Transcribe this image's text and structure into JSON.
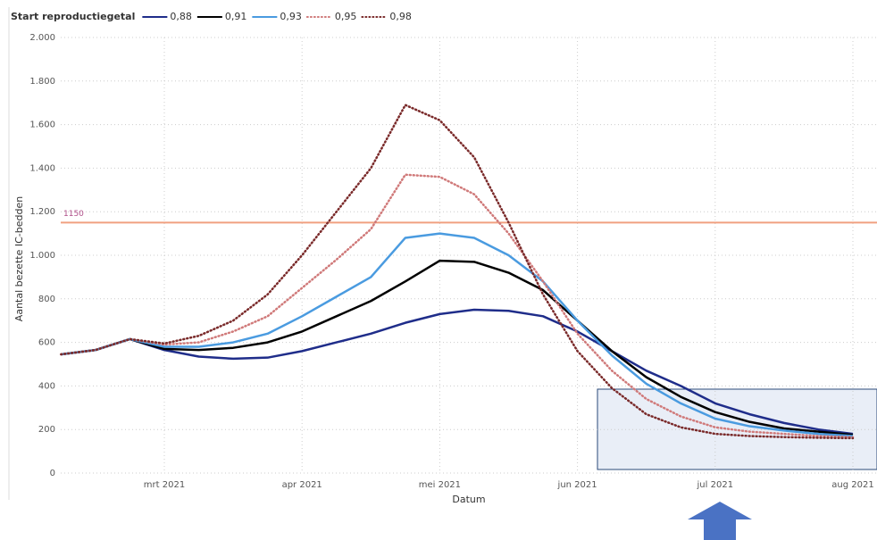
{
  "chart_data": {
    "type": "line",
    "legend_title": "Start reproductiegetal",
    "legend_position": "top-left",
    "x_label": "Datum",
    "y_label": "Aantal bezette IC-bedden",
    "categories": [
      null,
      null,
      null,
      "mrt 2021",
      null,
      null,
      null,
      "apr 2021",
      null,
      null,
      null,
      "mei 2021",
      null,
      null,
      null,
      "jun 2021",
      null,
      null,
      null,
      "jul 2021",
      null,
      null,
      null,
      "aug 2021"
    ],
    "series": [
      {
        "name": "0,88",
        "color": "#1f2d8a",
        "dash": "solid",
        "values": [
          545,
          565,
          615,
          565,
          535,
          525,
          530,
          560,
          600,
          640,
          690,
          730,
          750,
          745,
          720,
          650,
          560,
          470,
          400,
          320,
          270,
          230,
          200,
          180
        ]
      },
      {
        "name": "0,91",
        "color": "#000000",
        "dash": "solid",
        "values": [
          545,
          565,
          615,
          570,
          565,
          575,
          600,
          650,
          720,
          790,
          880,
          975,
          970,
          920,
          840,
          700,
          560,
          440,
          350,
          280,
          235,
          205,
          190,
          175
        ]
      },
      {
        "name": "0,93",
        "color": "#4a9be0",
        "dash": "solid",
        "values": [
          545,
          565,
          615,
          580,
          580,
          600,
          640,
          720,
          810,
          900,
          1080,
          1100,
          1080,
          1000,
          880,
          700,
          540,
          410,
          320,
          250,
          215,
          195,
          180,
          170
        ]
      },
      {
        "name": "0,95",
        "color": "#d07a7a",
        "dash": "dotted",
        "values": [
          545,
          565,
          615,
          590,
          600,
          650,
          720,
          850,
          980,
          1120,
          1370,
          1360,
          1280,
          1100,
          880,
          640,
          470,
          340,
          260,
          210,
          190,
          180,
          170,
          165
        ]
      },
      {
        "name": "0,98",
        "color": "#7a2a2a",
        "dash": "dotted",
        "values": [
          545,
          565,
          615,
          595,
          630,
          700,
          820,
          1000,
          1200,
          1400,
          1690,
          1620,
          1450,
          1150,
          820,
          560,
          390,
          270,
          210,
          180,
          170,
          165,
          162,
          160
        ]
      }
    ],
    "reference_line": {
      "value": 1150,
      "label": "1150",
      "color": "#f0a080"
    },
    "ylim": [
      0,
      2000
    ],
    "yticks": [
      0,
      200,
      400,
      600,
      800,
      {
        "value": 1000,
        "label": "1.000"
      },
      {
        "value": 1200,
        "label": "1.200"
      },
      {
        "value": 1400,
        "label": "1.400"
      },
      {
        "value": 1600,
        "label": "1.600"
      },
      {
        "value": 1800,
        "label": "1.800"
      },
      {
        "value": 2000,
        "label": "2.000"
      }
    ],
    "grid": true
  }
}
